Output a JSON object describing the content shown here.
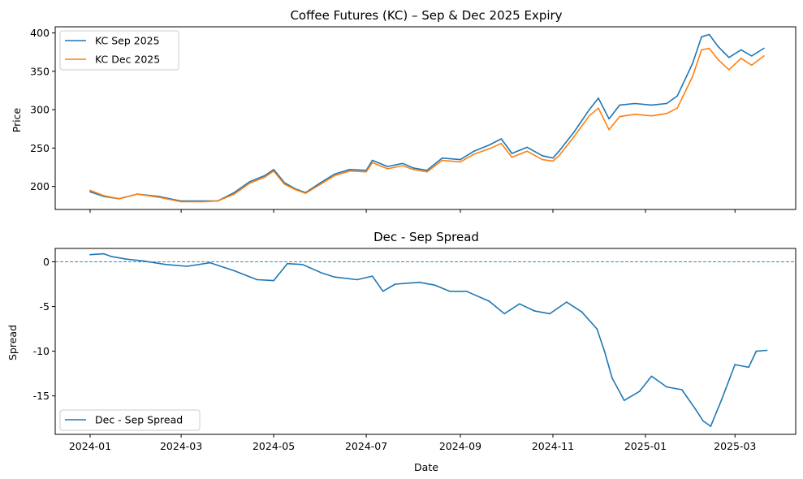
{
  "colors": {
    "sep": "#1f77b4",
    "dec": "#ff7f0e",
    "spread": "#1f77b4",
    "axis": "#000000"
  },
  "chart_data": [
    {
      "type": "line",
      "title": "Coffee Futures (KC) – Sep & Dec 2025 Expiry",
      "xlabel": "",
      "ylabel": "Price",
      "xlim": [
        "2023-12-09",
        "2025-04-10"
      ],
      "ylim": [
        170,
        408
      ],
      "x_ticks": [
        "2024-01-01",
        "2024-03-01",
        "2024-05-01",
        "2024-07-01",
        "2024-09-01",
        "2024-11-01",
        "2025-01-01",
        "2025-03-01"
      ],
      "x_tick_labels_visible": false,
      "y_ticks": [
        200,
        250,
        300,
        350,
        400
      ],
      "legend": {
        "position": "upper-left",
        "entries": [
          "KC Sep 2025",
          "KC Dec 2025"
        ]
      },
      "series": [
        {
          "name": "KC Sep 2025",
          "color": "#1f77b4",
          "points": [
            [
              "2024-01-01",
              193
            ],
            [
              "2024-01-10",
              187
            ],
            [
              "2024-01-20",
              184
            ],
            [
              "2024-02-01",
              190
            ],
            [
              "2024-02-15",
              187
            ],
            [
              "2024-03-01",
              181
            ],
            [
              "2024-03-15",
              181
            ],
            [
              "2024-03-25",
              181
            ],
            [
              "2024-04-05",
              192
            ],
            [
              "2024-04-15",
              206
            ],
            [
              "2024-04-25",
              214
            ],
            [
              "2024-05-01",
              222
            ],
            [
              "2024-05-08",
              205
            ],
            [
              "2024-05-15",
              197
            ],
            [
              "2024-05-22",
              192
            ],
            [
              "2024-06-01",
              205
            ],
            [
              "2024-06-10",
              216
            ],
            [
              "2024-06-20",
              222
            ],
            [
              "2024-07-01",
              221
            ],
            [
              "2024-07-05",
              234
            ],
            [
              "2024-07-15",
              226
            ],
            [
              "2024-07-25",
              230
            ],
            [
              "2024-08-01",
              224
            ],
            [
              "2024-08-10",
              221
            ],
            [
              "2024-08-20",
              237
            ],
            [
              "2024-09-01",
              235
            ],
            [
              "2024-09-10",
              246
            ],
            [
              "2024-09-20",
              254
            ],
            [
              "2024-09-28",
              262
            ],
            [
              "2024-10-05",
              243
            ],
            [
              "2024-10-15",
              251
            ],
            [
              "2024-10-25",
              240
            ],
            [
              "2024-11-01",
              237
            ],
            [
              "2024-11-05",
              246
            ],
            [
              "2024-11-15",
              271
            ],
            [
              "2024-11-25",
              300
            ],
            [
              "2024-12-01",
              315
            ],
            [
              "2024-12-08",
              288
            ],
            [
              "2024-12-15",
              306
            ],
            [
              "2024-12-25",
              308
            ],
            [
              "2025-01-05",
              306
            ],
            [
              "2025-01-15",
              308
            ],
            [
              "2025-01-22",
              318
            ],
            [
              "2025-02-01",
              360
            ],
            [
              "2025-02-07",
              395
            ],
            [
              "2025-02-12",
              398
            ],
            [
              "2025-02-18",
              382
            ],
            [
              "2025-02-25",
              368
            ],
            [
              "2025-03-05",
              378
            ],
            [
              "2025-03-12",
              370
            ],
            [
              "2025-03-20",
              380
            ]
          ]
        },
        {
          "name": "KC Dec 2025",
          "color": "#ff7f0e",
          "points": [
            [
              "2024-01-01",
              195
            ],
            [
              "2024-01-10",
              188
            ],
            [
              "2024-01-20",
              184
            ],
            [
              "2024-02-01",
              190
            ],
            [
              "2024-02-15",
              186
            ],
            [
              "2024-03-01",
              180
            ],
            [
              "2024-03-15",
              180
            ],
            [
              "2024-03-25",
              181
            ],
            [
              "2024-04-05",
              190
            ],
            [
              "2024-04-15",
              204
            ],
            [
              "2024-04-25",
              212
            ],
            [
              "2024-05-01",
              220
            ],
            [
              "2024-05-08",
              203
            ],
            [
              "2024-05-15",
              196
            ],
            [
              "2024-05-22",
              191
            ],
            [
              "2024-06-01",
              203
            ],
            [
              "2024-06-10",
              214
            ],
            [
              "2024-06-20",
              220
            ],
            [
              "2024-07-01",
              219
            ],
            [
              "2024-07-05",
              231
            ],
            [
              "2024-07-15",
              223
            ],
            [
              "2024-07-25",
              227
            ],
            [
              "2024-08-01",
              222
            ],
            [
              "2024-08-10",
              219
            ],
            [
              "2024-08-20",
              234
            ],
            [
              "2024-09-01",
              232
            ],
            [
              "2024-09-10",
              242
            ],
            [
              "2024-09-20",
              249
            ],
            [
              "2024-09-28",
              256
            ],
            [
              "2024-10-05",
              238
            ],
            [
              "2024-10-15",
              246
            ],
            [
              "2024-10-25",
              235
            ],
            [
              "2024-11-01",
              233
            ],
            [
              "2024-11-05",
              240
            ],
            [
              "2024-11-15",
              265
            ],
            [
              "2024-11-25",
              292
            ],
            [
              "2024-12-01",
              302
            ],
            [
              "2024-12-08",
              274
            ],
            [
              "2024-12-15",
              291
            ],
            [
              "2024-12-25",
              294
            ],
            [
              "2025-01-05",
              292
            ],
            [
              "2025-01-15",
              295
            ],
            [
              "2025-01-22",
              302
            ],
            [
              "2025-02-01",
              343
            ],
            [
              "2025-02-07",
              378
            ],
            [
              "2025-02-12",
              380
            ],
            [
              "2025-02-18",
              365
            ],
            [
              "2025-02-25",
              352
            ],
            [
              "2025-03-05",
              367
            ],
            [
              "2025-03-12",
              358
            ],
            [
              "2025-03-20",
              370
            ]
          ]
        }
      ]
    },
    {
      "type": "line",
      "title": "Dec - Sep Spread",
      "xlabel": "Date",
      "ylabel": "Spread",
      "xlim": [
        "2023-12-09",
        "2025-04-10"
      ],
      "ylim": [
        -19.3,
        1.5
      ],
      "x_ticks": [
        "2024-01-01",
        "2024-03-01",
        "2024-05-01",
        "2024-07-01",
        "2024-09-01",
        "2024-11-01",
        "2025-01-01",
        "2025-03-01"
      ],
      "x_tick_labels": [
        "2024-01",
        "2024-03",
        "2024-05",
        "2024-07",
        "2024-09",
        "2024-11",
        "2025-01",
        "2025-03"
      ],
      "y_ticks": [
        0,
        -5,
        -10,
        -15
      ],
      "reference_line": {
        "y": 0,
        "style": "dashed"
      },
      "legend": {
        "position": "lower-left",
        "entries": [
          "Dec - Sep Spread"
        ]
      },
      "series": [
        {
          "name": "Dec - Sep Spread",
          "color": "#1f77b4",
          "points": [
            [
              "2024-01-01",
              0.8
            ],
            [
              "2024-01-10",
              0.9
            ],
            [
              "2024-01-15",
              0.6
            ],
            [
              "2024-01-25",
              0.3
            ],
            [
              "2024-02-05",
              0.1
            ],
            [
              "2024-02-20",
              -0.3
            ],
            [
              "2024-03-05",
              -0.5
            ],
            [
              "2024-03-20",
              -0.1
            ],
            [
              "2024-04-05",
              -1.0
            ],
            [
              "2024-04-20",
              -2.0
            ],
            [
              "2024-05-01",
              -2.1
            ],
            [
              "2024-05-10",
              -0.2
            ],
            [
              "2024-05-20",
              -0.3
            ],
            [
              "2024-06-01",
              -1.2
            ],
            [
              "2024-06-10",
              -1.7
            ],
            [
              "2024-06-25",
              -2.0
            ],
            [
              "2024-07-05",
              -1.6
            ],
            [
              "2024-07-12",
              -3.3
            ],
            [
              "2024-07-20",
              -2.5
            ],
            [
              "2024-08-05",
              -2.3
            ],
            [
              "2024-08-15",
              -2.6
            ],
            [
              "2024-08-25",
              -3.3
            ],
            [
              "2024-09-05",
              -3.3
            ],
            [
              "2024-09-20",
              -4.4
            ],
            [
              "2024-09-30",
              -5.8
            ],
            [
              "2024-10-10",
              -4.7
            ],
            [
              "2024-10-20",
              -5.5
            ],
            [
              "2024-10-30",
              -5.8
            ],
            [
              "2024-11-10",
              -4.5
            ],
            [
              "2024-11-20",
              -5.6
            ],
            [
              "2024-11-30",
              -7.5
            ],
            [
              "2024-12-05",
              -10.0
            ],
            [
              "2024-12-10",
              -13.0
            ],
            [
              "2024-12-18",
              -15.5
            ],
            [
              "2024-12-28",
              -14.5
            ],
            [
              "2025-01-05",
              -12.8
            ],
            [
              "2025-01-15",
              -14.0
            ],
            [
              "2025-01-25",
              -14.3
            ],
            [
              "2025-02-03",
              -16.5
            ],
            [
              "2025-02-08",
              -17.8
            ],
            [
              "2025-02-13",
              -18.4
            ],
            [
              "2025-02-20",
              -15.5
            ],
            [
              "2025-03-01",
              -11.5
            ],
            [
              "2025-03-10",
              -11.8
            ],
            [
              "2025-03-15",
              -10.0
            ],
            [
              "2025-03-22",
              -9.9
            ]
          ]
        }
      ]
    }
  ]
}
